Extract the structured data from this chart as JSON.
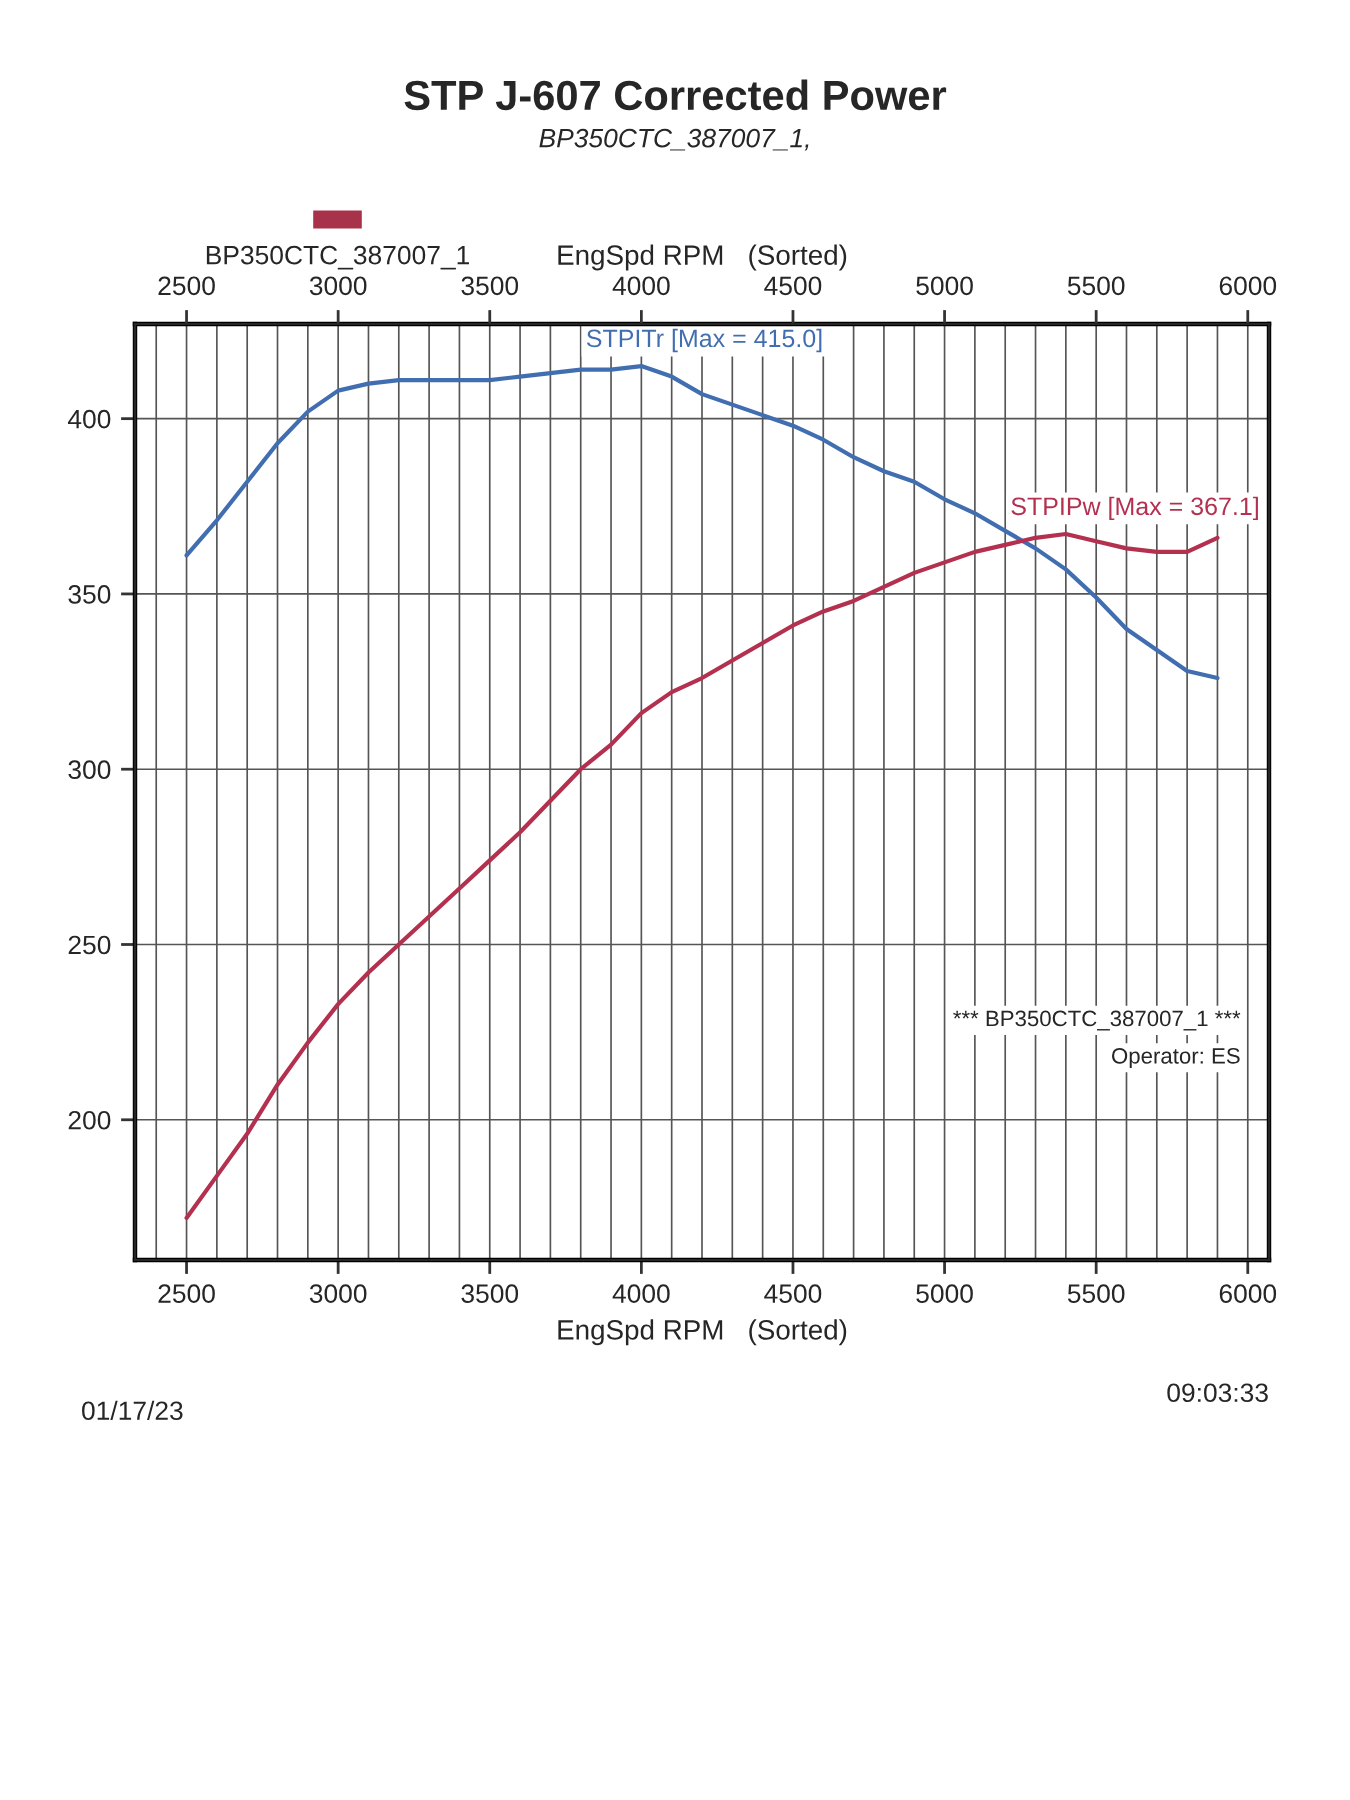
{
  "chart_data": {
    "type": "line",
    "title": "STP J-607 Corrected Power",
    "subtitle": "BP350CTC_387007_1,",
    "xlabel": "EngSpd RPM   (Sorted)",
    "x2label": "EngSpd RPM   (Sorted)",
    "x": [
      2500,
      2600,
      2700,
      2800,
      2900,
      3000,
      3100,
      3200,
      3300,
      3400,
      3500,
      3600,
      3700,
      3800,
      3900,
      4000,
      4100,
      4200,
      4300,
      4400,
      4500,
      4600,
      4700,
      4800,
      4900,
      5000,
      5100,
      5200,
      5300,
      5400,
      5500,
      5600,
      5700,
      5800,
      5900
    ],
    "series": [
      {
        "name": "STPITr [Max = 415.0]",
        "color": "#416eb0",
        "values": [
          361,
          371,
          382,
          393,
          402,
          408,
          410,
          411,
          411,
          411,
          411,
          412,
          413,
          414,
          414,
          415.0,
          412,
          407,
          404,
          401,
          398,
          394,
          389,
          385,
          382,
          377,
          373,
          368,
          363,
          357,
          349,
          340,
          334,
          328,
          326
        ]
      },
      {
        "name": "STPIPw [Max = 367.1]",
        "color": "#b3304f",
        "values": [
          172,
          184,
          196,
          210,
          222,
          233,
          242,
          250,
          258,
          266,
          274,
          282,
          291,
          300,
          307,
          316,
          322,
          326,
          331,
          336,
          341,
          345,
          348,
          352,
          356,
          359,
          362,
          364,
          366,
          367.1,
          365,
          363,
          362,
          362,
          366
        ]
      }
    ],
    "xlim": [
      2330,
      6070
    ],
    "xticks": [
      {
        "value": 2400,
        "label": null
      },
      2500,
      {
        "value": 2600,
        "label": null
      },
      {
        "value": 2700,
        "label": null
      },
      {
        "value": 2800,
        "label": null
      },
      {
        "value": 2900,
        "label": null
      },
      3000,
      {
        "value": 3100,
        "label": null
      },
      {
        "value": 3200,
        "label": null
      },
      {
        "value": 3300,
        "label": null
      },
      {
        "value": 3400,
        "label": null
      },
      3500,
      {
        "value": 3600,
        "label": null
      },
      {
        "value": 3700,
        "label": null
      },
      {
        "value": 3800,
        "label": null
      },
      {
        "value": 3900,
        "label": null
      },
      4000,
      {
        "value": 4100,
        "label": null
      },
      {
        "value": 4200,
        "label": null
      },
      {
        "value": 4300,
        "label": null
      },
      {
        "value": 4400,
        "label": null
      },
      4500,
      {
        "value": 4600,
        "label": null
      },
      {
        "value": 4700,
        "label": null
      },
      {
        "value": 4800,
        "label": null
      },
      {
        "value": 4900,
        "label": null
      },
      5000,
      {
        "value": 5100,
        "label": null
      },
      {
        "value": 5200,
        "label": null
      },
      {
        "value": 5300,
        "label": null
      },
      {
        "value": 5400,
        "label": null
      },
      5500,
      {
        "value": 5600,
        "label": null
      },
      {
        "value": 5700,
        "label": null
      },
      {
        "value": 5800,
        "label": null
      },
      {
        "value": 5900,
        "label": null
      },
      6000
    ],
    "x2lim": [
      2330,
      6070
    ],
    "x2ticks": [
      2500,
      3000,
      3500,
      4000,
      4500,
      5000,
      5500,
      6000
    ],
    "ylim": [
      160,
      427
    ],
    "yticks": [
      200,
      250,
      300,
      350,
      400
    ],
    "grid": true,
    "line_style": "solid",
    "annotations": [
      "BP350CTC_387007_1",
      "*** BP350CTC_387007_1 ***",
      "Operator: ES",
      "01/17/23",
      "09:03:33"
    ]
  }
}
